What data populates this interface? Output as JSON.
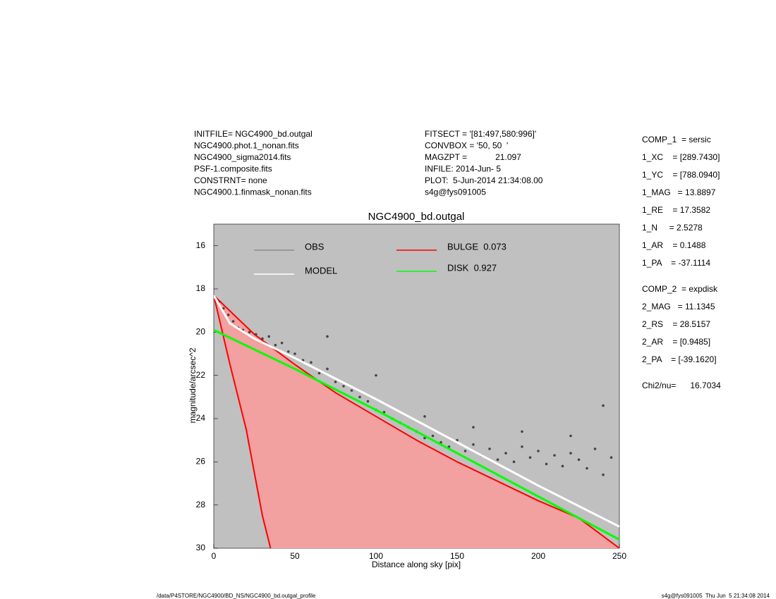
{
  "header_left": [
    "INITFILE= NGC4900_bd.outgal",
    "NGC4900.phot.1_nonan.fits",
    "NGC4900_sigma2014.fits",
    "PSF-1.composite.fits",
    "CONSTRNT= none",
    "NGC4900.1.finmask_nonan.fits"
  ],
  "header_middle": [
    "FITSECT = '[81:497,580:996]'",
    "CONVBOX = '50, 50  '",
    "MAGZPT =            21.097",
    "INFILE: 2014-Jun- 5",
    "PLOT:  5-Jun-2014 21:34:08.00",
    "s4g@fys091005"
  ],
  "parameters": [
    [
      "COMP_1  = sersic",
      "1_XC    = [289.7430]",
      "1_YC    = [788.0940]",
      "1_MAG   = 13.8897",
      "1_RE    = 17.3582",
      "1_N     = 2.5278",
      "1_AR    = 0.1488",
      "1_PA    = -37.1114"
    ],
    [
      "COMP_2  = expdisk",
      "2_MAG   = 11.1345",
      "2_RS    = 28.5157",
      "2_AR    = [0.9485]",
      "2_PA    = [-39.1620]"
    ],
    [
      "Chi2/nu=      16.7034"
    ]
  ],
  "footer_left": "/data/P4STORE/NGC4900/BD_NS/NGC4900_bd.outgal_profile",
  "footer_right": "s4g@fys091005  Thu Jun  5 21:34:08 2014",
  "chart_data": {
    "type": "line",
    "title": "NGC4900_bd.outgal",
    "x_label": "Distance along sky [pix]",
    "y_label": "magnitude/arcsec^2",
    "xlim": [
      0,
      250
    ],
    "ylim": [
      30,
      15
    ],
    "xticks": [
      0,
      50,
      100,
      150,
      200,
      250
    ],
    "yticks": [
      16,
      18,
      20,
      22,
      24,
      26,
      28,
      30
    ],
    "background": "#c0c0c0",
    "series": [
      {
        "name": "OBS",
        "type": "scatter",
        "color": "#444444",
        "legend_color": "#8c8c8c",
        "x": [
          3,
          6,
          9,
          12,
          15,
          18,
          22,
          26,
          30,
          34,
          38,
          42,
          46,
          50,
          55,
          60,
          65,
          70,
          75,
          80,
          85,
          90,
          95,
          100,
          105,
          110,
          115,
          120,
          125,
          130,
          135,
          140,
          145,
          150,
          155,
          160,
          165,
          170,
          175,
          180,
          185,
          190,
          195,
          200,
          205,
          210,
          215,
          220,
          225,
          230,
          235,
          240,
          245,
          130,
          160,
          190,
          220,
          240,
          70,
          100
        ],
        "values": [
          18.6,
          18.9,
          19.2,
          19.5,
          19.8,
          19.9,
          20.0,
          20.1,
          20.3,
          20.2,
          20.6,
          20.5,
          20.9,
          21.0,
          21.3,
          21.4,
          21.9,
          21.7,
          22.3,
          22.5,
          22.7,
          23.0,
          23.2,
          23.6,
          23.7,
          24.0,
          24.2,
          24.4,
          24.6,
          24.9,
          24.8,
          25.1,
          25.3,
          25.0,
          25.5,
          25.2,
          25.7,
          25.4,
          25.9,
          25.6,
          26.0,
          25.3,
          25.8,
          25.5,
          26.1,
          25.7,
          26.2,
          25.6,
          25.9,
          26.3,
          25.4,
          26.6,
          25.8,
          23.9,
          24.4,
          24.6,
          24.8,
          23.4,
          20.2,
          22.0
        ]
      },
      {
        "name": "MODEL",
        "type": "line",
        "color": "#ffffff",
        "x": [
          0,
          10,
          25,
          50,
          100,
          150,
          200,
          250
        ],
        "values": [
          18.3,
          19.6,
          20.3,
          21.2,
          23.1,
          25.1,
          27.1,
          29.0
        ]
      },
      {
        "name": "BULGE  0.073",
        "type": "fan",
        "color": "#ff0000",
        "fill": "#f2a0a0",
        "x": [
          0,
          12.5,
          25,
          50,
          75,
          100,
          125,
          150,
          175,
          200,
          225,
          250
        ],
        "values": [
          18.3,
          19.2,
          20.1,
          21.5,
          22.8,
          23.9,
          25.0,
          26.0,
          26.9,
          27.8,
          28.6,
          30.0
        ],
        "x_inner": [
          0,
          10,
          20,
          30,
          35
        ],
        "values_inner": [
          18.3,
          21.5,
          24.5,
          28.5,
          30
        ]
      },
      {
        "name": "DISK  0.927",
        "type": "line",
        "color": "#00ff00",
        "x": [
          0,
          50,
          100,
          150,
          200,
          250
        ],
        "values": [
          19.9,
          21.7,
          23.6,
          25.6,
          27.6,
          29.6
        ]
      }
    ]
  }
}
